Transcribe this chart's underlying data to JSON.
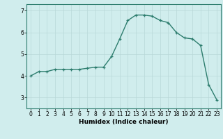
{
  "x": [
    0,
    1,
    2,
    3,
    4,
    5,
    6,
    7,
    8,
    9,
    10,
    11,
    12,
    13,
    14,
    15,
    16,
    17,
    18,
    19,
    20,
    21,
    22,
    23
  ],
  "y": [
    4.0,
    4.2,
    4.2,
    4.3,
    4.3,
    4.3,
    4.3,
    4.35,
    4.4,
    4.4,
    4.9,
    5.7,
    6.55,
    6.8,
    6.8,
    6.75,
    6.55,
    6.45,
    6.0,
    5.75,
    5.7,
    5.4,
    3.6,
    2.9
  ],
  "line_color": "#2d7d6e",
  "marker": "+",
  "markersize": 3.5,
  "linewidth": 1.0,
  "xlabel": "Humidex (Indice chaleur)",
  "ylabel": "",
  "bg_color": "#d0eded",
  "grid_color": "#b8d8d8",
  "axis_bg": "#d0eded",
  "xlim": [
    -0.5,
    23.5
  ],
  "ylim": [
    2.5,
    7.3
  ],
  "yticks": [
    3,
    4,
    5,
    6,
    7
  ],
  "xticks": [
    0,
    1,
    2,
    3,
    4,
    5,
    6,
    7,
    8,
    9,
    10,
    11,
    12,
    13,
    14,
    15,
    16,
    17,
    18,
    19,
    20,
    21,
    22,
    23
  ],
  "xlabel_fontsize": 6.5,
  "tick_fontsize": 5.5,
  "spine_color": "#2d7d6e"
}
